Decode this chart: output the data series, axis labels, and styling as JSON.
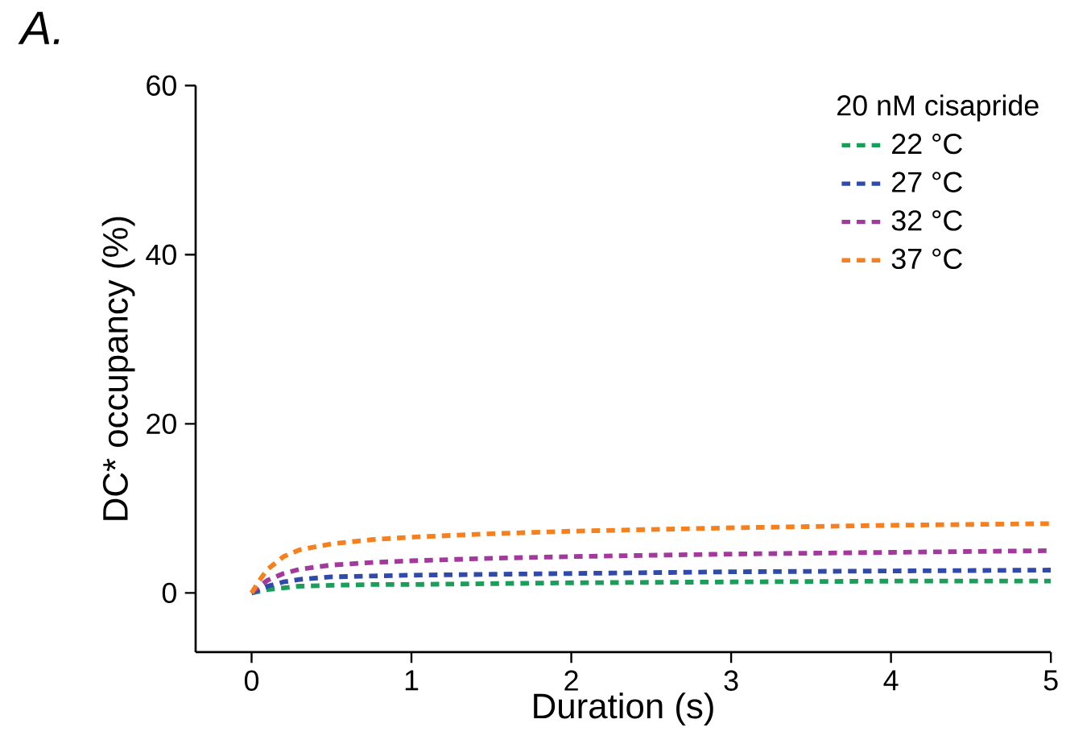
{
  "chart_data": {
    "type": "line",
    "xlabel": "Duration (s)",
    "ylabel": "DC* occupancy (%)",
    "legend_title": "20 nM cisapride",
    "annotations": [
      "A."
    ],
    "xlim": [
      -0.35,
      5
    ],
    "xticks": [
      0,
      1,
      2,
      3,
      4,
      5
    ],
    "ylim": [
      -7,
      60
    ],
    "yticks": [
      0,
      20,
      40,
      60
    ],
    "legend": "top right",
    "line_style": "dashed",
    "marker": "none",
    "x": [
      0,
      0.05,
      0.1,
      0.2,
      0.3,
      0.5,
      0.75,
      1,
      1.5,
      2,
      3,
      4,
      5
    ],
    "series": [
      {
        "name": "22 °C",
        "color": "#1b9e5a",
        "values": [
          0,
          0.2,
          0.4,
          0.6,
          0.8,
          0.9,
          1.0,
          1.0,
          1.1,
          1.2,
          1.3,
          1.4,
          1.4
        ]
      },
      {
        "name": "27 °C",
        "color": "#2f4aa8",
        "values": [
          0,
          0.4,
          0.8,
          1.3,
          1.6,
          1.9,
          2.0,
          2.1,
          2.2,
          2.3,
          2.5,
          2.6,
          2.7
        ]
      },
      {
        "name": "32 °C",
        "color": "#a3399d",
        "values": [
          0,
          0.8,
          1.5,
          2.3,
          2.8,
          3.3,
          3.6,
          3.8,
          4.1,
          4.3,
          4.6,
          4.8,
          5.0
        ]
      },
      {
        "name": "37 °C",
        "color": "#f7801e",
        "values": [
          0,
          1.5,
          2.8,
          4.3,
          5.1,
          5.8,
          6.3,
          6.6,
          7.0,
          7.3,
          7.7,
          8.0,
          8.2
        ]
      }
    ]
  }
}
